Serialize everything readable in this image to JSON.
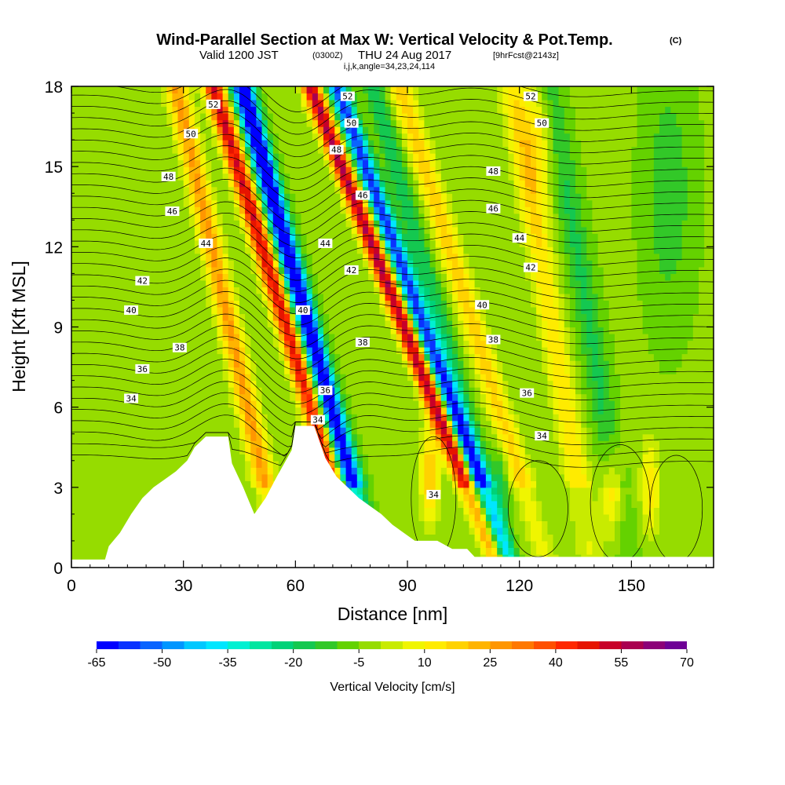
{
  "chart_data": {
    "type": "heatmap",
    "title": "Wind-Parallel Section at Max W: Vertical Velocity & Pot.Temp.",
    "title_suffix": "(C)",
    "subtitle": {
      "valid": "Valid 1200 JST",
      "utc": "(0300Z)",
      "date": "THU 24 Aug 2017",
      "forecast": "[9hrFcst@2143z]"
    },
    "params": "i,j,k,angle=34,23,24,114",
    "xlabel": "Distance [nm]",
    "ylabel": "Height [Kft MSL]",
    "xlim": [
      0,
      172
    ],
    "ylim": [
      0,
      18
    ],
    "x_ticks": [
      0,
      30,
      60,
      90,
      120,
      150
    ],
    "y_ticks": [
      0,
      3,
      6,
      9,
      12,
      15,
      18
    ],
    "grid": false,
    "colorbar": {
      "label": "Vertical Velocity [cm/s]",
      "tick_labels": [
        "-65",
        "-50",
        "-35",
        "-20",
        "-5",
        "10",
        "25",
        "40",
        "55",
        "70"
      ],
      "min": -65,
      "max": 70,
      "step": 5,
      "colors": [
        "#0000ff",
        "#0a32ff",
        "#0a64ff",
        "#0096ff",
        "#00c8ff",
        "#00e6ff",
        "#00f0d2",
        "#00e6a0",
        "#00d278",
        "#14c850",
        "#32c828",
        "#64d200",
        "#96dc00",
        "#c8eb00",
        "#f0f500",
        "#ffeb00",
        "#ffd200",
        "#ffb400",
        "#ff9600",
        "#ff7800",
        "#ff5000",
        "#ff2800",
        "#e61400",
        "#c80028",
        "#aa0050",
        "#8c0078",
        "#6e0096"
      ]
    },
    "contour_labels": [
      {
        "text": "52",
        "x": 38,
        "y": 17.3
      },
      {
        "text": "50",
        "x": 32,
        "y": 16.2
      },
      {
        "text": "48",
        "x": 26,
        "y": 14.6
      },
      {
        "text": "46",
        "x": 27,
        "y": 13.3
      },
      {
        "text": "44",
        "x": 36,
        "y": 12.1
      },
      {
        "text": "42",
        "x": 19,
        "y": 10.7
      },
      {
        "text": "40",
        "x": 16,
        "y": 9.6
      },
      {
        "text": "38",
        "x": 29,
        "y": 8.2
      },
      {
        "text": "36",
        "x": 19,
        "y": 7.4
      },
      {
        "text": "34",
        "x": 16,
        "y": 6.3
      },
      {
        "text": "52",
        "x": 74,
        "y": 17.6
      },
      {
        "text": "50",
        "x": 75,
        "y": 16.6
      },
      {
        "text": "48",
        "x": 71,
        "y": 15.6
      },
      {
        "text": "46",
        "x": 78,
        "y": 13.9
      },
      {
        "text": "44",
        "x": 68,
        "y": 12.1
      },
      {
        "text": "42",
        "x": 75,
        "y": 11.1
      },
      {
        "text": "40",
        "x": 62,
        "y": 9.6
      },
      {
        "text": "38",
        "x": 78,
        "y": 8.4
      },
      {
        "text": "36",
        "x": 68,
        "y": 6.6
      },
      {
        "text": "34",
        "x": 66,
        "y": 5.5
      },
      {
        "text": "34",
        "x": 97,
        "y": 2.7
      },
      {
        "text": "52",
        "x": 123,
        "y": 17.6
      },
      {
        "text": "50",
        "x": 126,
        "y": 16.6
      },
      {
        "text": "48",
        "x": 113,
        "y": 14.8
      },
      {
        "text": "46",
        "x": 113,
        "y": 13.4
      },
      {
        "text": "44",
        "x": 120,
        "y": 12.3
      },
      {
        "text": "42",
        "x": 123,
        "y": 11.2
      },
      {
        "text": "40",
        "x": 110,
        "y": 9.8
      },
      {
        "text": "38",
        "x": 113,
        "y": 8.5
      },
      {
        "text": "36",
        "x": 122,
        "y": 6.5
      },
      {
        "text": "34",
        "x": 126,
        "y": 4.9
      }
    ],
    "terrain_nm_kft": [
      [
        0,
        0.3
      ],
      [
        9,
        0.3
      ],
      [
        10,
        0.8
      ],
      [
        13,
        1.3
      ],
      [
        16,
        2.0
      ],
      [
        19,
        2.6
      ],
      [
        22,
        3.0
      ],
      [
        25,
        3.3
      ],
      [
        28,
        3.6
      ],
      [
        31,
        4.0
      ],
      [
        33,
        4.5
      ],
      [
        36,
        4.9
      ],
      [
        42,
        4.9
      ],
      [
        43,
        3.9
      ],
      [
        46,
        3.0
      ],
      [
        49,
        2.0
      ],
      [
        52,
        2.6
      ],
      [
        55,
        3.4
      ],
      [
        59,
        4.4
      ],
      [
        60,
        5.3
      ],
      [
        65,
        5.3
      ],
      [
        66,
        4.9
      ],
      [
        68,
        4.1
      ],
      [
        71,
        3.4
      ],
      [
        74,
        3.0
      ],
      [
        77,
        2.6
      ],
      [
        80,
        2.3
      ],
      [
        83,
        2.0
      ],
      [
        86,
        1.6
      ],
      [
        89,
        1.3
      ],
      [
        92,
        1.0
      ],
      [
        98,
        1.0
      ],
      [
        102,
        0.7
      ],
      [
        106,
        0.7
      ],
      [
        108,
        0.4
      ],
      [
        172,
        0.4
      ]
    ]
  }
}
